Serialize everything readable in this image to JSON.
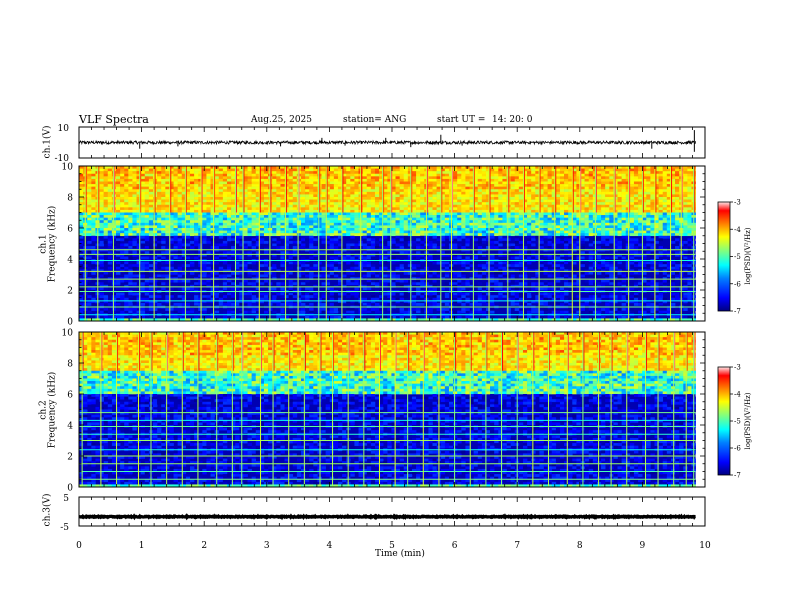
{
  "header": {
    "title": "VLF Spectra",
    "date": "Aug.25, 2025",
    "station": "station= ANG",
    "start_label": "start  UT  =",
    "start_time": "14: 20: 0"
  },
  "chart_data": [
    {
      "type": "line",
      "panel": "ch1-waveform",
      "ylabel": "ch.1(V)",
      "ylim": [
        -10,
        10
      ],
      "yticks": [
        "10",
        "-10"
      ],
      "baseline": 0,
      "noise_amplitude": 1,
      "spikes": [
        {
          "t": 0.97,
          "v": -4
        },
        {
          "t": 1.58,
          "v": -2.5
        },
        {
          "t": 3.22,
          "v": -2.5
        },
        {
          "t": 3.88,
          "v": 3
        },
        {
          "t": 4.25,
          "v": -2
        },
        {
          "t": 4.9,
          "v": 3
        },
        {
          "t": 5.3,
          "v": -3
        },
        {
          "t": 5.78,
          "v": 5
        },
        {
          "t": 6.12,
          "v": -2
        },
        {
          "t": 9.15,
          "v": -4
        },
        {
          "t": 9.83,
          "v": 8
        },
        {
          "t": 9.83,
          "v": -6
        }
      ]
    },
    {
      "type": "heatmap",
      "panel": "ch1-spectrogram",
      "ylabel_line1": "ch.1",
      "ylabel_line2": "Frequency (kHz)",
      "ylim": [
        0,
        10
      ],
      "yticks": [
        "0",
        "2",
        "4",
        "6",
        "8",
        "10"
      ],
      "xlim": [
        0,
        10
      ],
      "data_end_min": 9.85,
      "colorbar": {
        "range": [
          -7,
          -3
        ],
        "ticks": [
          "-3",
          "-4",
          "-5",
          "-6",
          "-7"
        ],
        "label": "log(PSD)(V²/Hz)"
      },
      "harmonic_lines_khz": [
        0.4,
        0.9,
        1.3,
        1.9,
        2.2,
        2.7,
        3.2,
        3.9,
        4.3,
        4.6
      ],
      "noise_floor_khz": 5.5,
      "vertical_bursts_min": [
        0.1,
        0.3,
        0.55,
        0.97,
        1.2,
        1.45,
        1.7,
        1.95,
        2.15,
        2.5,
        2.62,
        2.88,
        3.05,
        3.3,
        3.5,
        3.83,
        3.95,
        4.2,
        4.5,
        4.85,
        4.98,
        5.3,
        5.55,
        5.78,
        5.95,
        6.3,
        6.55,
        6.85,
        7.1,
        7.35,
        7.6,
        7.88,
        8.0,
        8.25,
        8.55,
        8.78,
        9.0,
        9.2,
        9.45,
        9.62,
        9.82
      ]
    },
    {
      "type": "heatmap",
      "panel": "ch2-spectrogram",
      "ylabel_line1": "ch.2",
      "ylabel_line2": "Frequency (kHz)",
      "ylim": [
        0,
        10
      ],
      "yticks": [
        "0",
        "2",
        "4",
        "6",
        "8",
        "10"
      ],
      "xlim": [
        0,
        10
      ],
      "data_end_min": 9.85,
      "colorbar": {
        "range": [
          -7,
          -3
        ],
        "ticks": [
          "-3",
          "-4",
          "-5",
          "-6",
          "-7"
        ],
        "label": "log(PSD)(V²/Hz)"
      },
      "harmonic_lines_khz": [
        0.5,
        1.0,
        1.5,
        2.0,
        2.4,
        3.0,
        3.4,
        3.9,
        4.3,
        4.8
      ],
      "noise_floor_khz": 6.0,
      "vertical_bursts_min": [
        0.05,
        0.35,
        0.6,
        0.95,
        1.15,
        1.4,
        1.65,
        1.9,
        2.2,
        2.45,
        2.6,
        2.9,
        3.1,
        3.35,
        3.6,
        3.85,
        4.05,
        4.3,
        4.55,
        4.8,
        5.05,
        5.25,
        5.5,
        5.75,
        6.0,
        6.25,
        6.5,
        6.75,
        7.0,
        7.25,
        7.5,
        7.8,
        8.05,
        8.3,
        8.5,
        8.75,
        9.05,
        9.25,
        9.5,
        9.7,
        9.82
      ]
    },
    {
      "type": "line",
      "panel": "ch3-waveform",
      "ylabel": "ch.3(V)",
      "ylim": [
        -5,
        5
      ],
      "yticks": [
        "5",
        "-5"
      ],
      "baseline": -1.8,
      "noise_amplitude": 0.15
    }
  ],
  "xaxis": {
    "label": "Time  (min)",
    "ticks": [
      "0",
      "1",
      "2",
      "3",
      "4",
      "5",
      "6",
      "7",
      "8",
      "9",
      "10"
    ],
    "range": [
      0,
      10
    ]
  },
  "colors": {
    "colormap": [
      "#00007f",
      "#0000ff",
      "#0080ff",
      "#00ffff",
      "#80ff80",
      "#ffff00",
      "#ff8000",
      "#ff0000",
      "#ffd0d0"
    ]
  }
}
